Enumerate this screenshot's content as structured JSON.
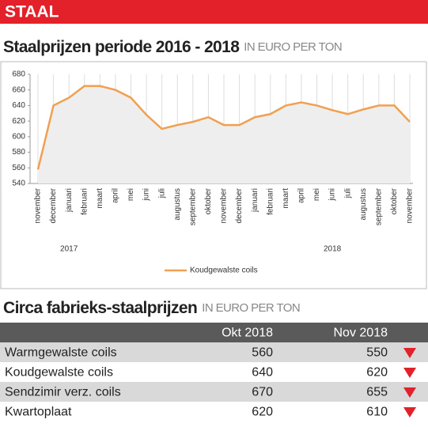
{
  "header": {
    "title": "STAAL"
  },
  "chart_data": {
    "type": "line",
    "title": "Staalprijzen periode 2016 - 2018",
    "subtitle": "IN EURO PER TON",
    "categories": [
      "november",
      "december",
      "januari",
      "februari",
      "maart",
      "april",
      "mei",
      "juni",
      "juli",
      "augustus",
      "september",
      "oktober",
      "november",
      "december",
      "januari",
      "februari",
      "maart",
      "april",
      "mei",
      "juni",
      "juli",
      "augustus",
      "september",
      "oktober",
      "november"
    ],
    "annotations": [
      "2017",
      "2018"
    ],
    "series": [
      {
        "name": "Koudgewalste coils",
        "color": "#f0a050",
        "values": [
          558,
          640,
          650,
          665,
          665,
          660,
          650,
          628,
          610,
          615,
          619,
          625,
          615,
          615,
          625,
          629,
          640,
          644,
          640,
          634,
          629,
          635,
          640,
          640,
          619
        ]
      }
    ],
    "ylim": [
      540,
      680
    ],
    "yticks": [
      540,
      560,
      580,
      600,
      620,
      640,
      660,
      680
    ],
    "grid": true,
    "legend": "bottom"
  },
  "table": {
    "title": "Circa fabrieks-staalprijzen",
    "subtitle": "IN EURO PER TON",
    "columns": [
      "Okt 2018",
      "Nov 2018"
    ],
    "rows": [
      [
        "Warmgewalste coils",
        560,
        550
      ],
      [
        "Koudgewalste coils",
        640,
        620
      ],
      [
        "Sendzimir verz. coils",
        670,
        655
      ],
      [
        "Kwartoplaat",
        620,
        610
      ]
    ]
  }
}
